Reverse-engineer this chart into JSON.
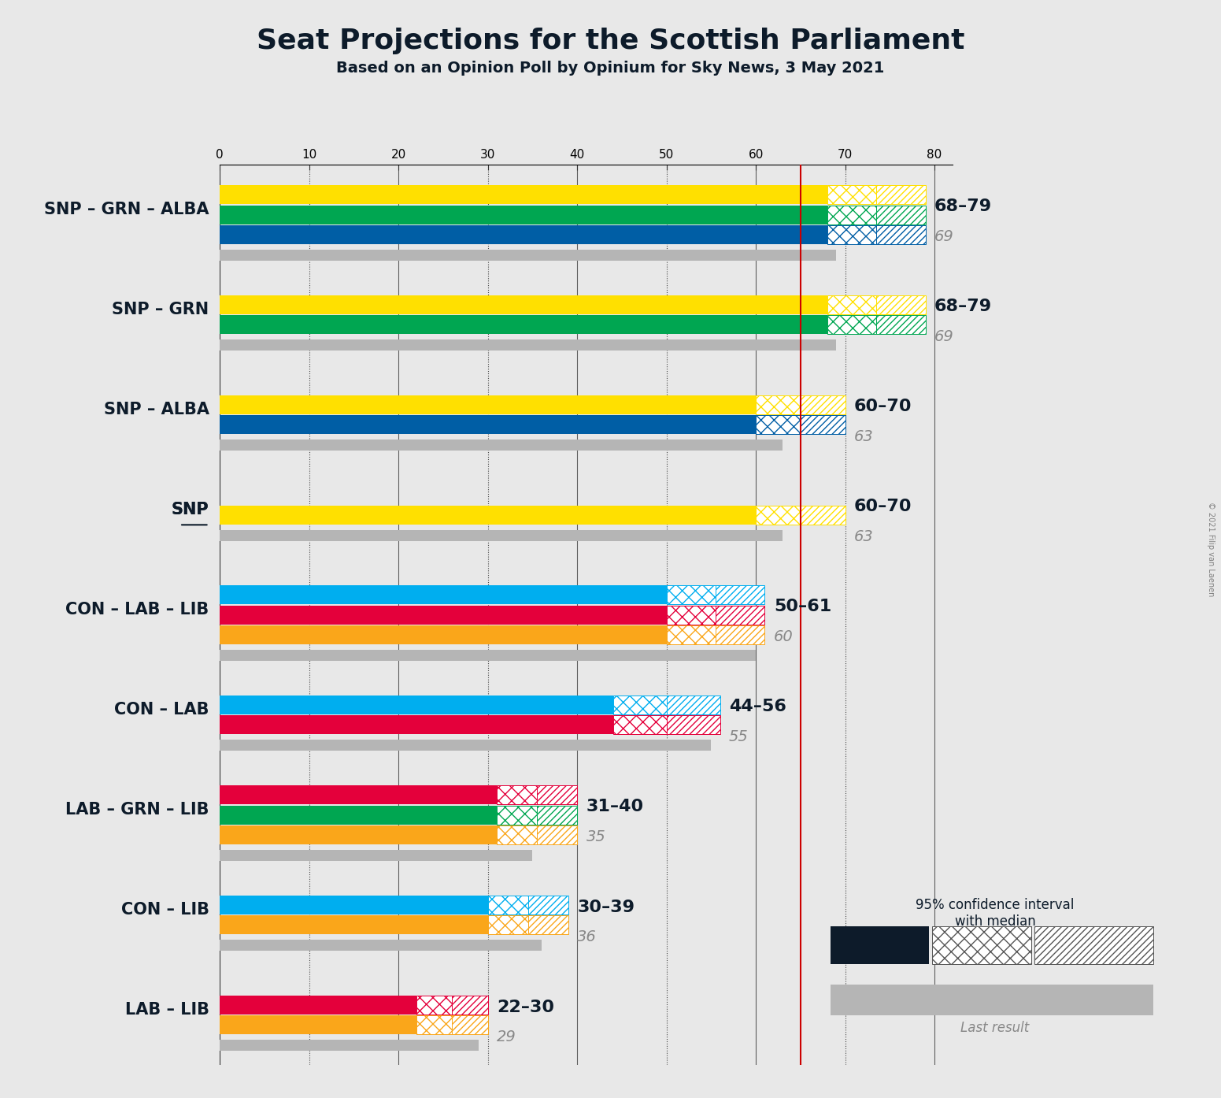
{
  "title": "Seat Projections for the Scottish Parliament",
  "subtitle": "Based on an Opinion Poll by Opinium for Sky News, 3 May 2021",
  "copyright": "© 2021 Filip van Laenen",
  "background_color": "#e8e8e8",
  "majority_line": 65,
  "x_max": 82,
  "x_ticks": [
    0,
    10,
    20,
    30,
    40,
    50,
    60,
    70,
    80
  ],
  "party_colors": {
    "SNP": "#FFE000",
    "GRN": "#00A651",
    "ALBA": "#005EA5",
    "CON": "#00AEEF",
    "LAB": "#E4003B",
    "LIB": "#FAA61A"
  },
  "coalitions": [
    {
      "label": "SNP – GRN – ALBA",
      "parties": [
        "SNP",
        "GRN",
        "ALBA"
      ],
      "ci_low": 68,
      "ci_high": 79,
      "median": 69,
      "last_result": 69,
      "underline": false
    },
    {
      "label": "SNP – GRN",
      "parties": [
        "SNP",
        "GRN"
      ],
      "ci_low": 68,
      "ci_high": 79,
      "median": 69,
      "last_result": 69,
      "underline": false
    },
    {
      "label": "SNP – ALBA",
      "parties": [
        "SNP",
        "ALBA"
      ],
      "ci_low": 60,
      "ci_high": 70,
      "median": 63,
      "last_result": 63,
      "underline": false
    },
    {
      "label": "SNP",
      "parties": [
        "SNP"
      ],
      "ci_low": 60,
      "ci_high": 70,
      "median": 63,
      "last_result": 63,
      "underline": true
    },
    {
      "label": "CON – LAB – LIB",
      "parties": [
        "CON",
        "LAB",
        "LIB"
      ],
      "ci_low": 50,
      "ci_high": 61,
      "median": 60,
      "last_result": 60,
      "underline": false
    },
    {
      "label": "CON – LAB",
      "parties": [
        "CON",
        "LAB"
      ],
      "ci_low": 44,
      "ci_high": 56,
      "median": 55,
      "last_result": 55,
      "underline": false
    },
    {
      "label": "LAB – GRN – LIB",
      "parties": [
        "LAB",
        "GRN",
        "LIB"
      ],
      "ci_low": 31,
      "ci_high": 40,
      "median": 35,
      "last_result": 35,
      "underline": false
    },
    {
      "label": "CON – LIB",
      "parties": [
        "CON",
        "LIB"
      ],
      "ci_low": 30,
      "ci_high": 39,
      "median": 36,
      "last_result": 36,
      "underline": false
    },
    {
      "label": "LAB – LIB",
      "parties": [
        "LAB",
        "LIB"
      ],
      "ci_low": 22,
      "ci_high": 30,
      "median": 29,
      "last_result": 29,
      "underline": false
    }
  ]
}
